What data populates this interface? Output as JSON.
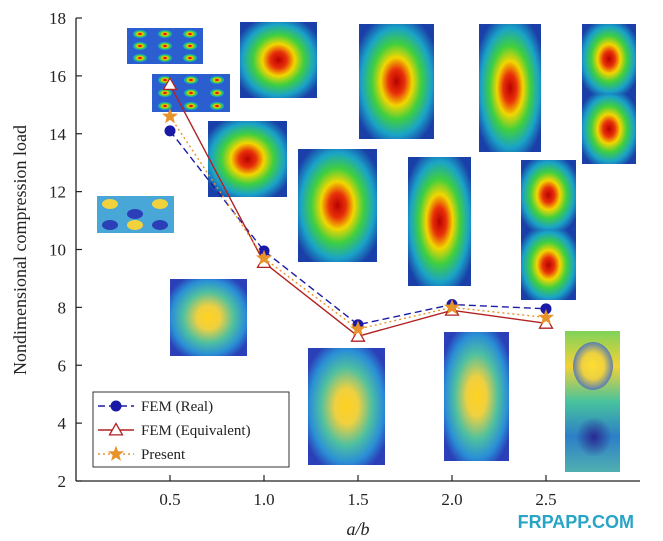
{
  "chart_data": {
    "type": "line",
    "title": "",
    "xlabel": "a/b",
    "ylabel": "Nondimensional compression load",
    "x": [
      0.5,
      1.0,
      1.5,
      2.0,
      2.5
    ],
    "xlim": [
      0.0,
      3.0
    ],
    "ylim": [
      2,
      18
    ],
    "x_ticks": [
      "0.5",
      "1.0",
      "1.5",
      "2.0",
      "2.5"
    ],
    "y_ticks": [
      "2",
      "4",
      "6",
      "8",
      "10",
      "12",
      "14",
      "16",
      "18"
    ],
    "series": [
      {
        "name": "FEM (Real)",
        "values": [
          14.1,
          9.95,
          7.4,
          8.1,
          7.95
        ],
        "color": "#1a1aa6",
        "marker": "circle",
        "line": "dashed"
      },
      {
        "name": "FEM (Equivalent)",
        "values": [
          15.7,
          9.55,
          7.0,
          7.9,
          7.45
        ],
        "color": "#b22222",
        "marker": "triangle",
        "line": "solid"
      },
      {
        "name": "Present",
        "values": [
          14.6,
          9.7,
          7.25,
          8.0,
          7.65
        ],
        "color": "#e8932a",
        "marker": "star",
        "line": "dotted"
      }
    ],
    "legend": "bottom-left",
    "grid": false
  },
  "watermark": "FRPAPP.COM",
  "colors": {
    "watermark": "#27a4c6"
  }
}
